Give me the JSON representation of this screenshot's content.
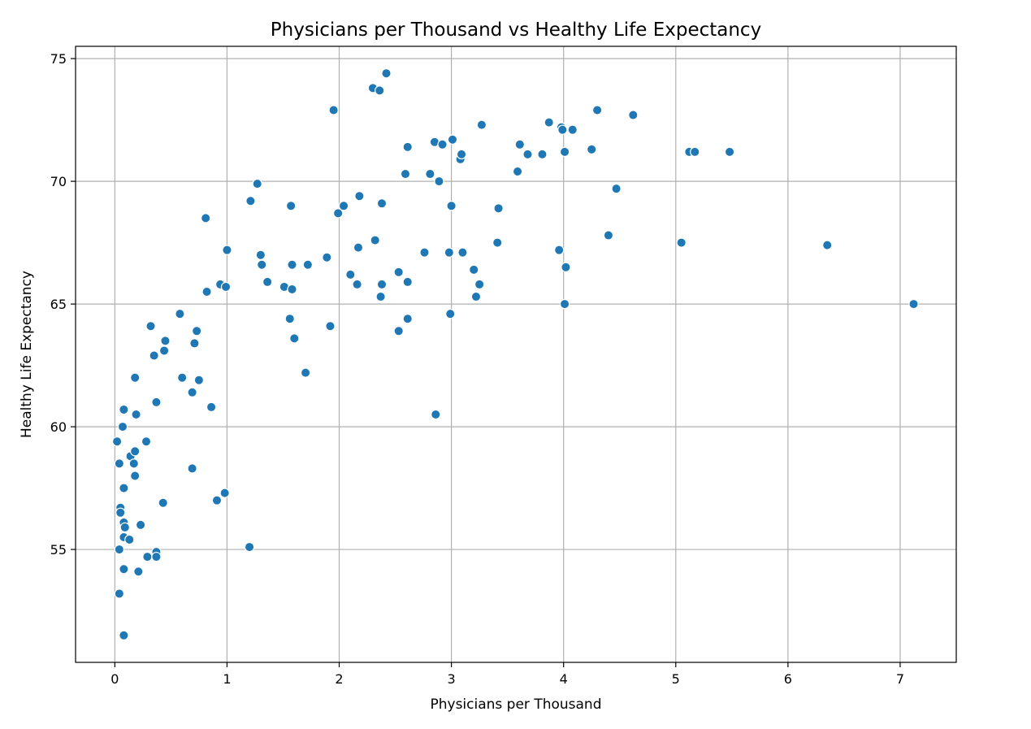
{
  "chart_data": {
    "type": "scatter",
    "title": "Physicians per Thousand vs Healthy Life Expectancy",
    "xlabel": "Physicians per Thousand",
    "ylabel": "Healthy Life Expectancy",
    "xlim": [
      -0.35,
      7.5
    ],
    "ylim": [
      50.4,
      75.5
    ],
    "xticks": [
      0,
      1,
      2,
      3,
      4,
      5,
      6,
      7
    ],
    "xtick_labels": [
      "0",
      "1",
      "2",
      "3",
      "4",
      "5",
      "6",
      "7"
    ],
    "yticks": [
      55,
      60,
      65,
      70,
      75
    ],
    "ytick_labels": [
      "55",
      "60",
      "65",
      "70",
      "75"
    ],
    "grid": true,
    "color": "#1f77b4",
    "points": [
      [
        0.02,
        59.4
      ],
      [
        0.04,
        58.5
      ],
      [
        0.05,
        56.7
      ],
      [
        0.05,
        56.5
      ],
      [
        0.04,
        55.0
      ],
      [
        0.04,
        53.2
      ],
      [
        0.07,
        60.0
      ],
      [
        0.08,
        60.7
      ],
      [
        0.08,
        57.5
      ],
      [
        0.08,
        56.1
      ],
      [
        0.09,
        55.9
      ],
      [
        0.08,
        55.5
      ],
      [
        0.08,
        54.2
      ],
      [
        0.08,
        51.5
      ],
      [
        0.13,
        55.4
      ],
      [
        0.14,
        58.8
      ],
      [
        0.17,
        58.5
      ],
      [
        0.18,
        58.0
      ],
      [
        0.18,
        59.0
      ],
      [
        0.18,
        62.0
      ],
      [
        0.19,
        60.5
      ],
      [
        0.21,
        54.1
      ],
      [
        0.23,
        56.0
      ],
      [
        0.28,
        59.4
      ],
      [
        0.29,
        54.7
      ],
      [
        0.32,
        64.1
      ],
      [
        0.35,
        62.9
      ],
      [
        0.37,
        61.0
      ],
      [
        0.37,
        54.9
      ],
      [
        0.37,
        54.7
      ],
      [
        0.43,
        56.9
      ],
      [
        0.44,
        63.1
      ],
      [
        0.45,
        63.5
      ],
      [
        0.58,
        64.6
      ],
      [
        0.6,
        62.0
      ],
      [
        0.69,
        61.4
      ],
      [
        0.69,
        58.3
      ],
      [
        0.71,
        63.4
      ],
      [
        0.73,
        63.9
      ],
      [
        0.75,
        61.9
      ],
      [
        0.81,
        68.5
      ],
      [
        0.82,
        65.5
      ],
      [
        0.86,
        60.8
      ],
      [
        0.91,
        57.0
      ],
      [
        0.94,
        65.8
      ],
      [
        0.98,
        57.3
      ],
      [
        0.99,
        65.7
      ],
      [
        1.0,
        67.2
      ],
      [
        1.2,
        55.1
      ],
      [
        1.21,
        69.2
      ],
      [
        1.27,
        69.9
      ],
      [
        1.3,
        67.0
      ],
      [
        1.31,
        66.6
      ],
      [
        1.36,
        65.9
      ],
      [
        1.51,
        65.7
      ],
      [
        1.56,
        64.4
      ],
      [
        1.57,
        69.0
      ],
      [
        1.58,
        66.6
      ],
      [
        1.58,
        65.6
      ],
      [
        1.6,
        63.6
      ],
      [
        1.7,
        62.2
      ],
      [
        1.72,
        66.6
      ],
      [
        1.89,
        66.9
      ],
      [
        1.92,
        64.1
      ],
      [
        1.95,
        72.9
      ],
      [
        1.99,
        68.7
      ],
      [
        2.04,
        69.0
      ],
      [
        2.1,
        66.2
      ],
      [
        2.16,
        65.8
      ],
      [
        2.17,
        67.3
      ],
      [
        2.18,
        69.4
      ],
      [
        2.3,
        73.8
      ],
      [
        2.32,
        67.6
      ],
      [
        2.36,
        73.7
      ],
      [
        2.37,
        65.3
      ],
      [
        2.38,
        69.1
      ],
      [
        2.38,
        65.8
      ],
      [
        2.42,
        74.4
      ],
      [
        2.53,
        66.3
      ],
      [
        2.53,
        63.9
      ],
      [
        2.59,
        70.3
      ],
      [
        2.61,
        71.4
      ],
      [
        2.61,
        64.4
      ],
      [
        2.61,
        65.9
      ],
      [
        2.76,
        67.1
      ],
      [
        2.81,
        70.3
      ],
      [
        2.85,
        71.6
      ],
      [
        2.86,
        60.5
      ],
      [
        2.89,
        70.0
      ],
      [
        2.92,
        71.5
      ],
      [
        2.98,
        67.1
      ],
      [
        2.99,
        64.6
      ],
      [
        3.0,
        69.0
      ],
      [
        3.01,
        71.7
      ],
      [
        3.08,
        70.9
      ],
      [
        3.09,
        71.1
      ],
      [
        3.1,
        67.1
      ],
      [
        3.2,
        66.4
      ],
      [
        3.22,
        65.3
      ],
      [
        3.25,
        65.8
      ],
      [
        3.27,
        72.3
      ],
      [
        3.41,
        67.5
      ],
      [
        3.42,
        68.9
      ],
      [
        3.59,
        70.4
      ],
      [
        3.61,
        71.5
      ],
      [
        3.68,
        71.1
      ],
      [
        3.81,
        71.1
      ],
      [
        3.87,
        72.4
      ],
      [
        3.96,
        67.2
      ],
      [
        3.98,
        72.2
      ],
      [
        3.99,
        72.1
      ],
      [
        4.01,
        71.2
      ],
      [
        4.01,
        65.0
      ],
      [
        4.02,
        66.5
      ],
      [
        4.08,
        72.1
      ],
      [
        4.25,
        71.3
      ],
      [
        4.3,
        72.9
      ],
      [
        4.4,
        67.8
      ],
      [
        4.47,
        69.7
      ],
      [
        4.62,
        72.7
      ],
      [
        5.05,
        67.5
      ],
      [
        5.12,
        71.2
      ],
      [
        5.17,
        71.2
      ],
      [
        5.48,
        71.2
      ],
      [
        6.35,
        67.4
      ],
      [
        7.12,
        65.0
      ]
    ]
  }
}
